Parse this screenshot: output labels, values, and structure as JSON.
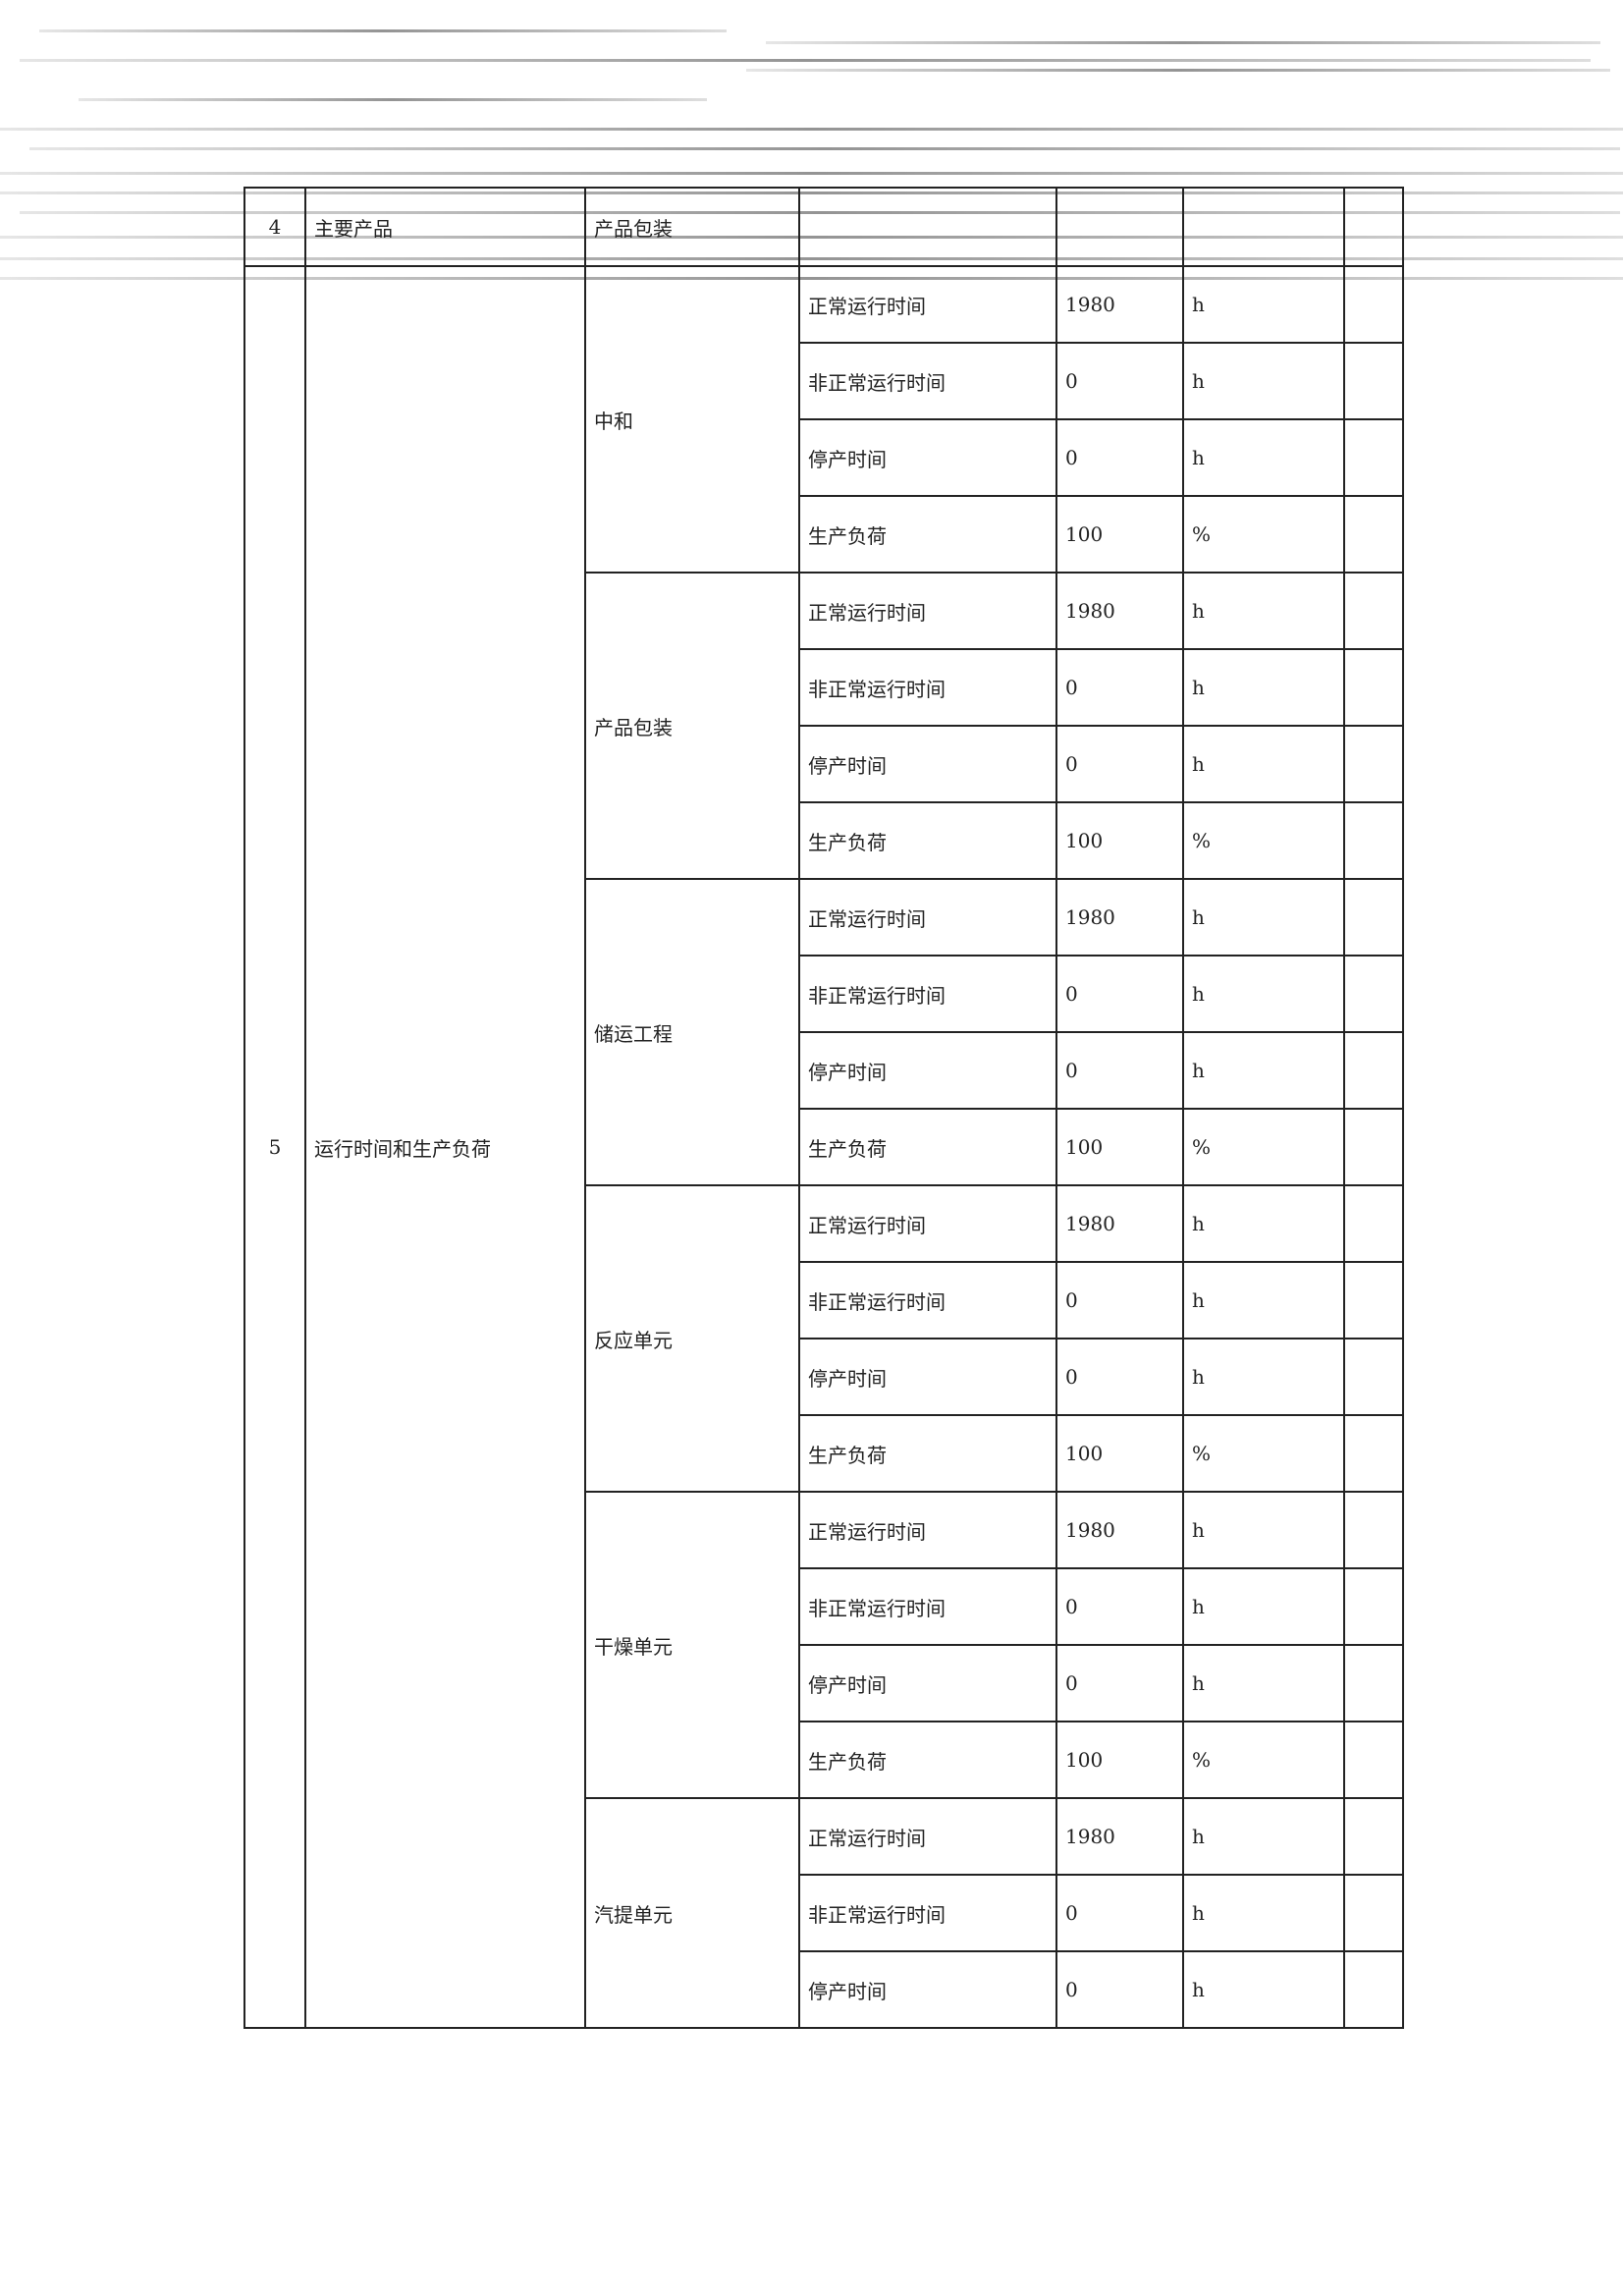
{
  "table": {
    "row4": {
      "no": "4",
      "item": "主要产品",
      "sub": "产品包装"
    },
    "row5": {
      "no": "5",
      "item": "运行时间和生产负荷",
      "groups": [
        {
          "name": "中和",
          "rows": [
            {
              "param": "正常运行时间",
              "value": "1980",
              "unit": "h"
            },
            {
              "param": "非正常运行时间",
              "value": "0",
              "unit": "h"
            },
            {
              "param": "停产时间",
              "value": "0",
              "unit": "h"
            },
            {
              "param": "生产负荷",
              "value": "100",
              "unit": "%"
            }
          ]
        },
        {
          "name": "产品包装",
          "rows": [
            {
              "param": "正常运行时间",
              "value": "1980",
              "unit": "h"
            },
            {
              "param": "非正常运行时间",
              "value": "0",
              "unit": "h"
            },
            {
              "param": "停产时间",
              "value": "0",
              "unit": "h"
            },
            {
              "param": "生产负荷",
              "value": "100",
              "unit": "%"
            }
          ]
        },
        {
          "name": "储运工程",
          "rows": [
            {
              "param": "正常运行时间",
              "value": "1980",
              "unit": "h"
            },
            {
              "param": "非正常运行时间",
              "value": "0",
              "unit": "h"
            },
            {
              "param": "停产时间",
              "value": "0",
              "unit": "h"
            },
            {
              "param": "生产负荷",
              "value": "100",
              "unit": "%"
            }
          ]
        },
        {
          "name": "反应单元",
          "rows": [
            {
              "param": "正常运行时间",
              "value": "1980",
              "unit": "h"
            },
            {
              "param": "非正常运行时间",
              "value": "0",
              "unit": "h"
            },
            {
              "param": "停产时间",
              "value": "0",
              "unit": "h"
            },
            {
              "param": "生产负荷",
              "value": "100",
              "unit": "%"
            }
          ]
        },
        {
          "name": "干燥单元",
          "rows": [
            {
              "param": "正常运行时间",
              "value": "1980",
              "unit": "h"
            },
            {
              "param": "非正常运行时间",
              "value": "0",
              "unit": "h"
            },
            {
              "param": "停产时间",
              "value": "0",
              "unit": "h"
            },
            {
              "param": "生产负荷",
              "value": "100",
              "unit": "%"
            }
          ]
        },
        {
          "name": "汽提单元",
          "rows": [
            {
              "param": "正常运行时间",
              "value": "1980",
              "unit": "h"
            },
            {
              "param": "非正常运行时间",
              "value": "0",
              "unit": "h"
            },
            {
              "param": "停产时间",
              "value": "0",
              "unit": "h"
            }
          ]
        }
      ]
    }
  }
}
